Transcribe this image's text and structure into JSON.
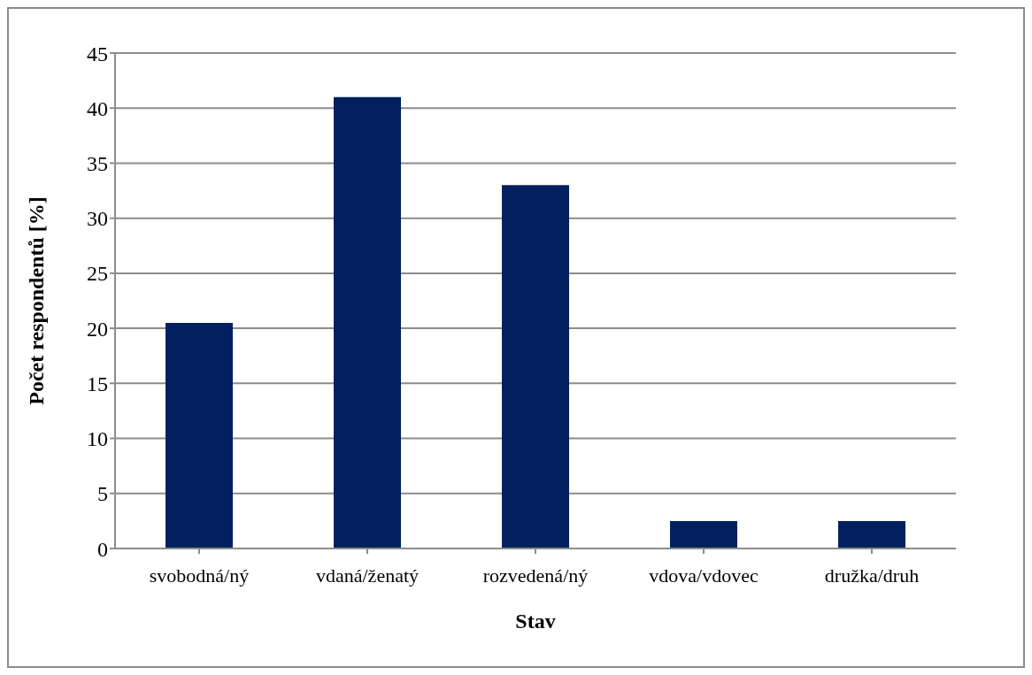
{
  "chart_data": {
    "type": "bar",
    "xlabel": "Stav",
    "ylabel": "Počet respondentů  [%]",
    "categories": [
      "svobodná/ný",
      "vdaná/ženatý",
      "rozvedená/ný",
      "vdova/vdovec",
      "družka/druh"
    ],
    "values": [
      20.5,
      41,
      33,
      2.5,
      2.5
    ],
    "color": "#022060",
    "ylim": [
      0,
      45
    ],
    "yticks": [
      0,
      5,
      10,
      15,
      20,
      25,
      30,
      35,
      40,
      45
    ],
    "grid": "y"
  }
}
